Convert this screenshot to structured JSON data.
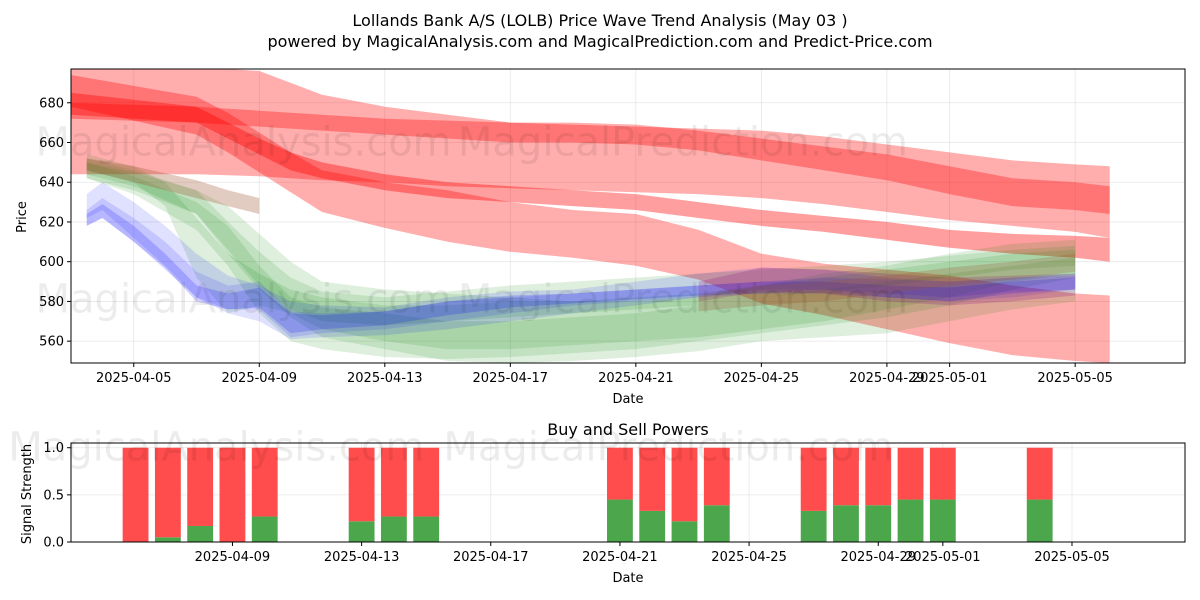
{
  "chart_data": [
    {
      "type": "area",
      "title": "Lollands Bank A/S (LOLB) Price Wave Trend Analysis (May 03 )",
      "subtitle": "powered by MagicalAnalysis.com and MagicalPrediction.com and Predict-Price.com",
      "xlabel": "Date",
      "ylabel": "Price",
      "xlim": [
        -2.0,
        33.5
      ],
      "ylim": [
        549,
        697
      ],
      "x_ticks": [
        {
          "x": 0,
          "label": "2025-04-05"
        },
        {
          "x": 4,
          "label": "2025-04-09"
        },
        {
          "x": 8,
          "label": "2025-04-13"
        },
        {
          "x": 12,
          "label": "2025-04-17"
        },
        {
          "x": 16,
          "label": "2025-04-21"
        },
        {
          "x": 20,
          "label": "2025-04-25"
        },
        {
          "x": 24,
          "label": "2025-04-29"
        },
        {
          "x": 26,
          "label": "2025-05-01"
        },
        {
          "x": 30,
          "label": "2025-05-05"
        }
      ],
      "y_ticks": [
        560,
        580,
        600,
        620,
        640,
        660,
        680
      ],
      "grid": true,
      "bands": [
        {
          "color": "#ff0000",
          "opacity": 0.32,
          "x": [
            -2.2,
            -2,
            2,
            4,
            5,
            6,
            8,
            10,
            12,
            14,
            16,
            18,
            20,
            22,
            24,
            26,
            28,
            30,
            31.1
          ],
          "upper": [
            660,
            698,
            698,
            696,
            690,
            684,
            678,
            674,
            670,
            669,
            668,
            667,
            666,
            663,
            659,
            655,
            651,
            649,
            648
          ],
          "lower": [
            660,
            644,
            644,
            643,
            642,
            641,
            640,
            638,
            637,
            636,
            635,
            634,
            632,
            629,
            625,
            621,
            618,
            615,
            612
          ]
        },
        {
          "color": "#ff0000",
          "opacity": 0.32,
          "x": [
            -2,
            2,
            3,
            4,
            5,
            6,
            8,
            10,
            12,
            14,
            16,
            18,
            20,
            22,
            24,
            26,
            28,
            30,
            31.1
          ],
          "upper": [
            694,
            683,
            675,
            665,
            655,
            646,
            640,
            636,
            630,
            626,
            624,
            616,
            604,
            599,
            596,
            593,
            588,
            584,
            583
          ],
          "lower": [
            678,
            664,
            655,
            645,
            635,
            625,
            617,
            610,
            605,
            602,
            598,
            591,
            579,
            573,
            566,
            559,
            553,
            550,
            549
          ]
        },
        {
          "color": "#ff0000",
          "opacity": 0.38,
          "x": [
            -2,
            2,
            3,
            4,
            5,
            6,
            8,
            10,
            12,
            14,
            16,
            18,
            20,
            22,
            24,
            26,
            28,
            30,
            31.1
          ],
          "upper": [
            685,
            678,
            670,
            662,
            655,
            650,
            644,
            640,
            638,
            636,
            634,
            630,
            626,
            623,
            620,
            616,
            614,
            613,
            612
          ],
          "lower": [
            674,
            670,
            662,
            654,
            646,
            642,
            636,
            632,
            630,
            628,
            626,
            622,
            618,
            615,
            611,
            607,
            604,
            602,
            600
          ]
        },
        {
          "color": "#ff0000",
          "opacity": 0.32,
          "x": [
            -2,
            2,
            4,
            6,
            8,
            10,
            12,
            14,
            16,
            18,
            20,
            22,
            24,
            26,
            28,
            30,
            31.1
          ],
          "upper": [
            680,
            678,
            676,
            674,
            672,
            671,
            670,
            670,
            669,
            666,
            662,
            658,
            654,
            648,
            642,
            640,
            638
          ],
          "lower": [
            672,
            670,
            668,
            666,
            664,
            662,
            660,
            660,
            659,
            656,
            651,
            646,
            641,
            634,
            628,
            626,
            624
          ]
        },
        {
          "color": "#008000",
          "opacity": 0.13,
          "x": [
            -1.5,
            0,
            2,
            3,
            4,
            5,
            6,
            8,
            10,
            12,
            14,
            16,
            18,
            20,
            22,
            24,
            26,
            28,
            30
          ],
          "upper": [
            650,
            645,
            636,
            628,
            614,
            600,
            590,
            586,
            584,
            582,
            580,
            580,
            582,
            588,
            594,
            598,
            604,
            609,
            611
          ],
          "lower": [
            642,
            636,
            624,
            604,
            586,
            572,
            562,
            556,
            550,
            549,
            550,
            552,
            555,
            560,
            562,
            564,
            570,
            576,
            580
          ]
        },
        {
          "color": "#008000",
          "opacity": 0.13,
          "x": [
            -1.5,
            0,
            1,
            2,
            3,
            4,
            5,
            6,
            8,
            10,
            12,
            14,
            16,
            18,
            20,
            22,
            24,
            26,
            28,
            30
          ],
          "upper": [
            654,
            648,
            640,
            622,
            604,
            594,
            586,
            582,
            578,
            578,
            580,
            580,
            582,
            584,
            588,
            592,
            596,
            600,
            604,
            606
          ],
          "lower": [
            646,
            640,
            628,
            592,
            574,
            578,
            574,
            566,
            560,
            556,
            556,
            558,
            560,
            562,
            566,
            570,
            576,
            582,
            590,
            594
          ]
        },
        {
          "color": "#008000",
          "opacity": 0.13,
          "x": [
            -1.5,
            0,
            2,
            3,
            4,
            5,
            6,
            8,
            10,
            12,
            14,
            16,
            18,
            20,
            22,
            24,
            26,
            28,
            30
          ],
          "upper": [
            652,
            646,
            636,
            620,
            605,
            592,
            585,
            582,
            585,
            588,
            590,
            592,
            594,
            596,
            598,
            600,
            603,
            606,
            608
          ],
          "lower": [
            644,
            638,
            624,
            606,
            588,
            576,
            570,
            568,
            570,
            572,
            574,
            576,
            578,
            582,
            585,
            588,
            592,
            596,
            598
          ]
        },
        {
          "color": "#008000",
          "opacity": 0.13,
          "x": [
            -1.5,
            0,
            2,
            3,
            4,
            5,
            6,
            8,
            10,
            12,
            14,
            16,
            18,
            20,
            22,
            24,
            26,
            28,
            30
          ],
          "upper": [
            650,
            643,
            630,
            618,
            598,
            582,
            577,
            574,
            570,
            570,
            572,
            574,
            578,
            582,
            586,
            590,
            594,
            598,
            602
          ],
          "lower": [
            642,
            634,
            616,
            598,
            574,
            560,
            556,
            552,
            551,
            552,
            554,
            556,
            560,
            564,
            568,
            572,
            578,
            586,
            592
          ]
        },
        {
          "color": "#0000ff",
          "opacity": 0.12,
          "x": [
            -1.5,
            -1,
            0,
            1,
            2,
            3,
            4,
            5,
            6,
            8,
            10,
            12,
            14,
            16,
            18,
            20,
            22,
            24,
            26,
            28,
            30
          ],
          "upper": [
            634,
            640,
            630,
            618,
            604,
            593,
            588,
            580,
            578,
            577,
            582,
            585,
            586,
            590,
            594,
            597,
            596,
            592,
            590,
            592,
            594
          ],
          "lower": [
            622,
            626,
            612,
            598,
            582,
            574,
            570,
            561,
            562,
            563,
            566,
            570,
            574,
            578,
            582,
            586,
            586,
            582,
            580,
            582,
            586
          ]
        },
        {
          "color": "#0000ff",
          "opacity": 0.12,
          "x": [
            -1.5,
            -1,
            0,
            1,
            2,
            3,
            4,
            5,
            6,
            8,
            10,
            12,
            14,
            16,
            18,
            20,
            22,
            24,
            26,
            28,
            30
          ],
          "upper": [
            626,
            632,
            622,
            610,
            595,
            588,
            590,
            575,
            574,
            575,
            580,
            582,
            584,
            586,
            588,
            590,
            592,
            591,
            590,
            592,
            593
          ],
          "lower": [
            618,
            622,
            610,
            596,
            582,
            576,
            576,
            562,
            564,
            566,
            570,
            574,
            578,
            580,
            582,
            584,
            586,
            584,
            582,
            585,
            586
          ]
        },
        {
          "color": "#0000ff",
          "opacity": 0.18,
          "x": [
            -1.5,
            -1,
            0,
            1,
            2,
            3,
            4,
            5,
            6,
            8,
            10,
            12,
            14,
            16,
            18,
            20,
            22,
            24,
            26,
            28,
            30
          ],
          "upper": [
            624,
            629,
            618,
            604,
            588,
            584,
            587,
            574,
            573,
            575,
            580,
            583,
            584,
            586,
            588,
            590,
            590,
            588,
            587,
            590,
            592
          ],
          "lower": [
            618,
            622,
            610,
            597,
            580,
            576,
            577,
            564,
            566,
            568,
            573,
            577,
            579,
            581,
            583,
            584,
            584,
            582,
            580,
            584,
            586
          ]
        },
        {
          "color": "#800080",
          "opacity": 0.2,
          "x": [
            18,
            20,
            22,
            24,
            26,
            28,
            30
          ],
          "upper": [
            590,
            597,
            596,
            594,
            592,
            593,
            594
          ],
          "lower": [
            580,
            585,
            584,
            580,
            578,
            580,
            583
          ]
        },
        {
          "color": "#a0522d",
          "opacity": 0.3,
          "x": [
            -1.5,
            0,
            2,
            3,
            4
          ],
          "upper": [
            652,
            648,
            641,
            636,
            632
          ],
          "lower": [
            646,
            640,
            632,
            628,
            624
          ]
        },
        {
          "color": "#a0522d",
          "opacity": 0.25,
          "x": [
            18,
            20,
            22,
            24,
            26,
            28,
            30
          ],
          "upper": [
            583,
            588,
            590,
            593,
            597,
            600,
            604
          ],
          "lower": [
            575,
            578,
            580,
            584,
            588,
            591,
            595
          ]
        }
      ],
      "watermarks": [
        {
          "text": "MagicalAnalysis.com",
          "x": 3.5,
          "y": 659
        },
        {
          "text": "MagicalPrediction.com",
          "x": 17.5,
          "y": 659
        },
        {
          "text": "MagicalAnalysis.com",
          "x": 3.5,
          "y": 580
        },
        {
          "text": "MagicalPrediction.com",
          "x": 17.5,
          "y": 580
        }
      ]
    },
    {
      "type": "bar",
      "title": "Buy and Sell Powers",
      "xlabel": "Date",
      "ylabel": "Signal Strength",
      "xlim": [
        -1.0,
        33.5
      ],
      "ylim": [
        0,
        1.05
      ],
      "x_ticks": [
        {
          "x": 4,
          "label": "2025-04-09"
        },
        {
          "x": 8,
          "label": "2025-04-13"
        },
        {
          "x": 12,
          "label": "2025-04-17"
        },
        {
          "x": 16,
          "label": "2025-04-21"
        },
        {
          "x": 20,
          "label": "2025-04-25"
        },
        {
          "x": 24,
          "label": "2025-04-29"
        },
        {
          "x": 26,
          "label": "2025-05-01"
        },
        {
          "x": 30,
          "label": "2025-05-05"
        }
      ],
      "y_ticks": [
        0.0,
        0.5,
        1.0
      ],
      "y_tick_labels": [
        "0.0",
        "0.5",
        "1.0"
      ],
      "grid": true,
      "bar_width": 0.8,
      "series": [
        {
          "name": "Buy",
          "color": "#4ca64c",
          "values": [
            0.0,
            0.05,
            0.17,
            0.0,
            0.27,
            0.22,
            0.27,
            0.27,
            0.45,
            0.33,
            0.22,
            0.39,
            0.33,
            0.39,
            0.39,
            0.45,
            0.45,
            0.45
          ]
        },
        {
          "name": "Sell",
          "color": "#ff4c4c",
          "values": [
            1.0,
            0.95,
            0.83,
            1.0,
            0.73,
            0.78,
            0.73,
            0.73,
            0.55,
            0.67,
            0.78,
            0.61,
            0.67,
            0.61,
            0.61,
            0.55,
            0.55,
            0.55
          ]
        }
      ],
      "x": [
        1,
        2,
        3,
        4,
        5,
        8,
        9,
        10,
        16,
        17,
        18,
        19,
        22,
        23,
        24,
        25,
        26,
        29
      ],
      "watermarks": [
        {
          "text": "MagicalAnalysis.com",
          "x": 3.5,
          "y": 0.98
        },
        {
          "text": "MagicalPrediction.com",
          "x": 17.5,
          "y": 0.98
        }
      ]
    }
  ]
}
